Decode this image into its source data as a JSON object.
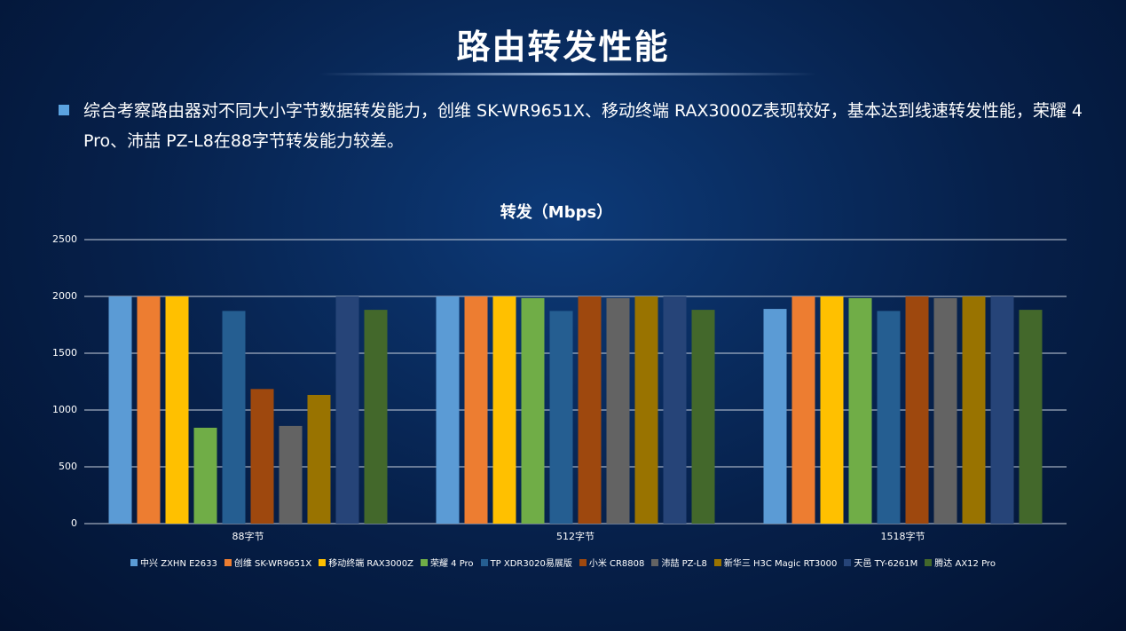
{
  "header": {
    "title": "路由转发性能"
  },
  "bullet": "综合考察路由器对不同大小字节数据转发能力，创维 SK-WR9651X、移动终端 RAX3000Z表现较好，基本达到线速转发性能，荣耀 4 Pro、沛喆 PZ-L8在88字节转发能力较差。",
  "chart_data": {
    "type": "bar",
    "title": "转发（Mbps）",
    "categories": [
      "88字节",
      "512字节",
      "1518字节"
    ],
    "ylim": [
      0,
      2500
    ],
    "yticks": [
      0,
      500,
      1000,
      1500,
      2000,
      2500
    ],
    "grid": true,
    "legend": "bottom",
    "series": [
      {
        "name": "中兴 ZXHN E2633",
        "color": "#5b9bd5",
        "values": [
          2000,
          2000,
          1890
        ]
      },
      {
        "name": "创维 SK-WR9651X",
        "color": "#ed7d31",
        "values": [
          2000,
          2000,
          2000
        ]
      },
      {
        "name": "移动终端 RAX3000Z",
        "color": "#ffc000",
        "values": [
          2000,
          2000,
          2000
        ]
      },
      {
        "name": "荣耀 4 Pro",
        "color": "#70ad47",
        "values": [
          844,
          1985,
          1985
        ]
      },
      {
        "name": "TP XDR3020易展版",
        "color": "#255e91",
        "values": [
          1872,
          1872,
          1872
        ]
      },
      {
        "name": "小米 CR8808",
        "color": "#9e480e",
        "values": [
          1185,
          2000,
          2000
        ]
      },
      {
        "name": "沛喆 PZ-L8",
        "color": "#636363",
        "values": [
          860,
          1985,
          1985
        ]
      },
      {
        "name": "新华三 H3C Magic RT3000",
        "color": "#997300",
        "values": [
          1133,
          2000,
          2000
        ]
      },
      {
        "name": "天邑 TY-6261M",
        "color": "#264478",
        "values": [
          2000,
          2000,
          2000
        ]
      },
      {
        "name": "腾达 AX12 Pro",
        "color": "#43682b",
        "values": [
          1882,
          1882,
          1882
        ]
      }
    ]
  }
}
